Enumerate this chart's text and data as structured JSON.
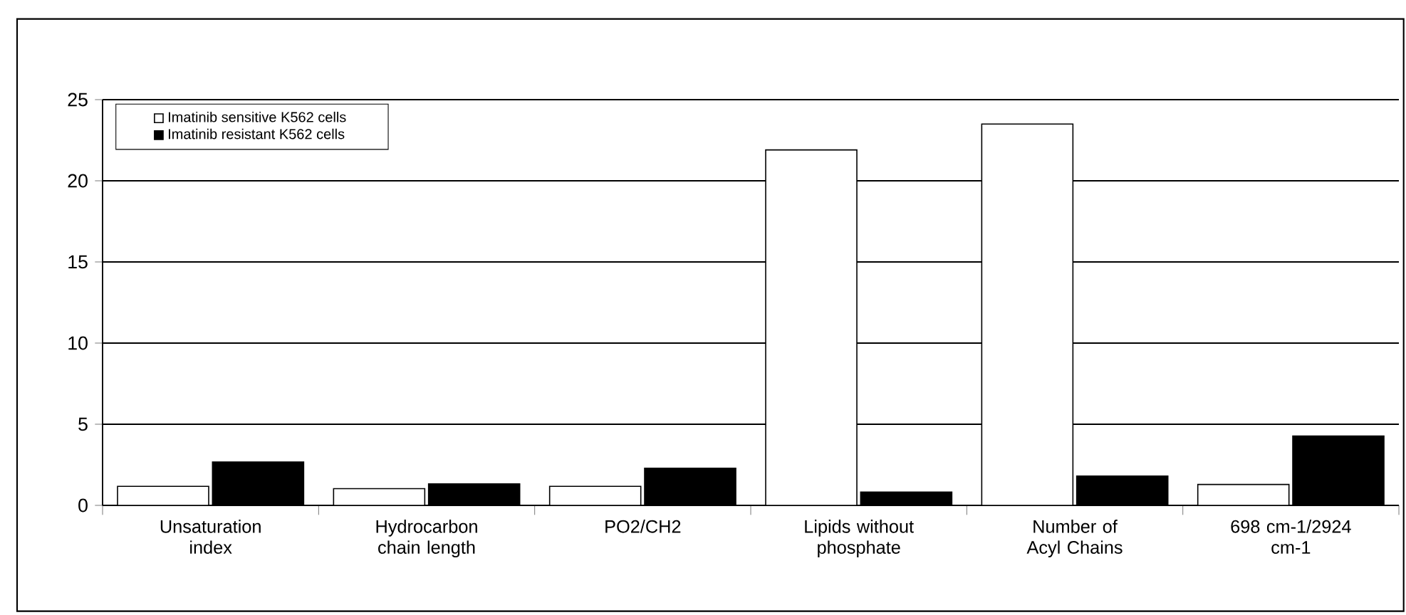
{
  "chart_data": {
    "type": "bar",
    "categories": [
      "Unsaturation index",
      "Hydrocarbon chain length",
      "PO2/CH2",
      "Lipids without phosphate",
      "Number of Acyl Chains",
      "698 cm-1/2924 cm-1"
    ],
    "series": [
      {
        "name": "Imatinib sensitive K562 cells",
        "color": "#ffffff",
        "values": [
          1.17,
          1.03,
          1.17,
          21.9,
          23.5,
          1.29
        ]
      },
      {
        "name": "Imatinib resistant K562 cells",
        "color": "#000000",
        "values": [
          2.67,
          1.32,
          2.29,
          0.82,
          1.81,
          4.27
        ]
      }
    ],
    "ylim": [
      0,
      25
    ],
    "yticks": [
      0,
      5,
      10,
      15,
      20,
      25
    ],
    "grid": "y",
    "legend": "top left"
  }
}
